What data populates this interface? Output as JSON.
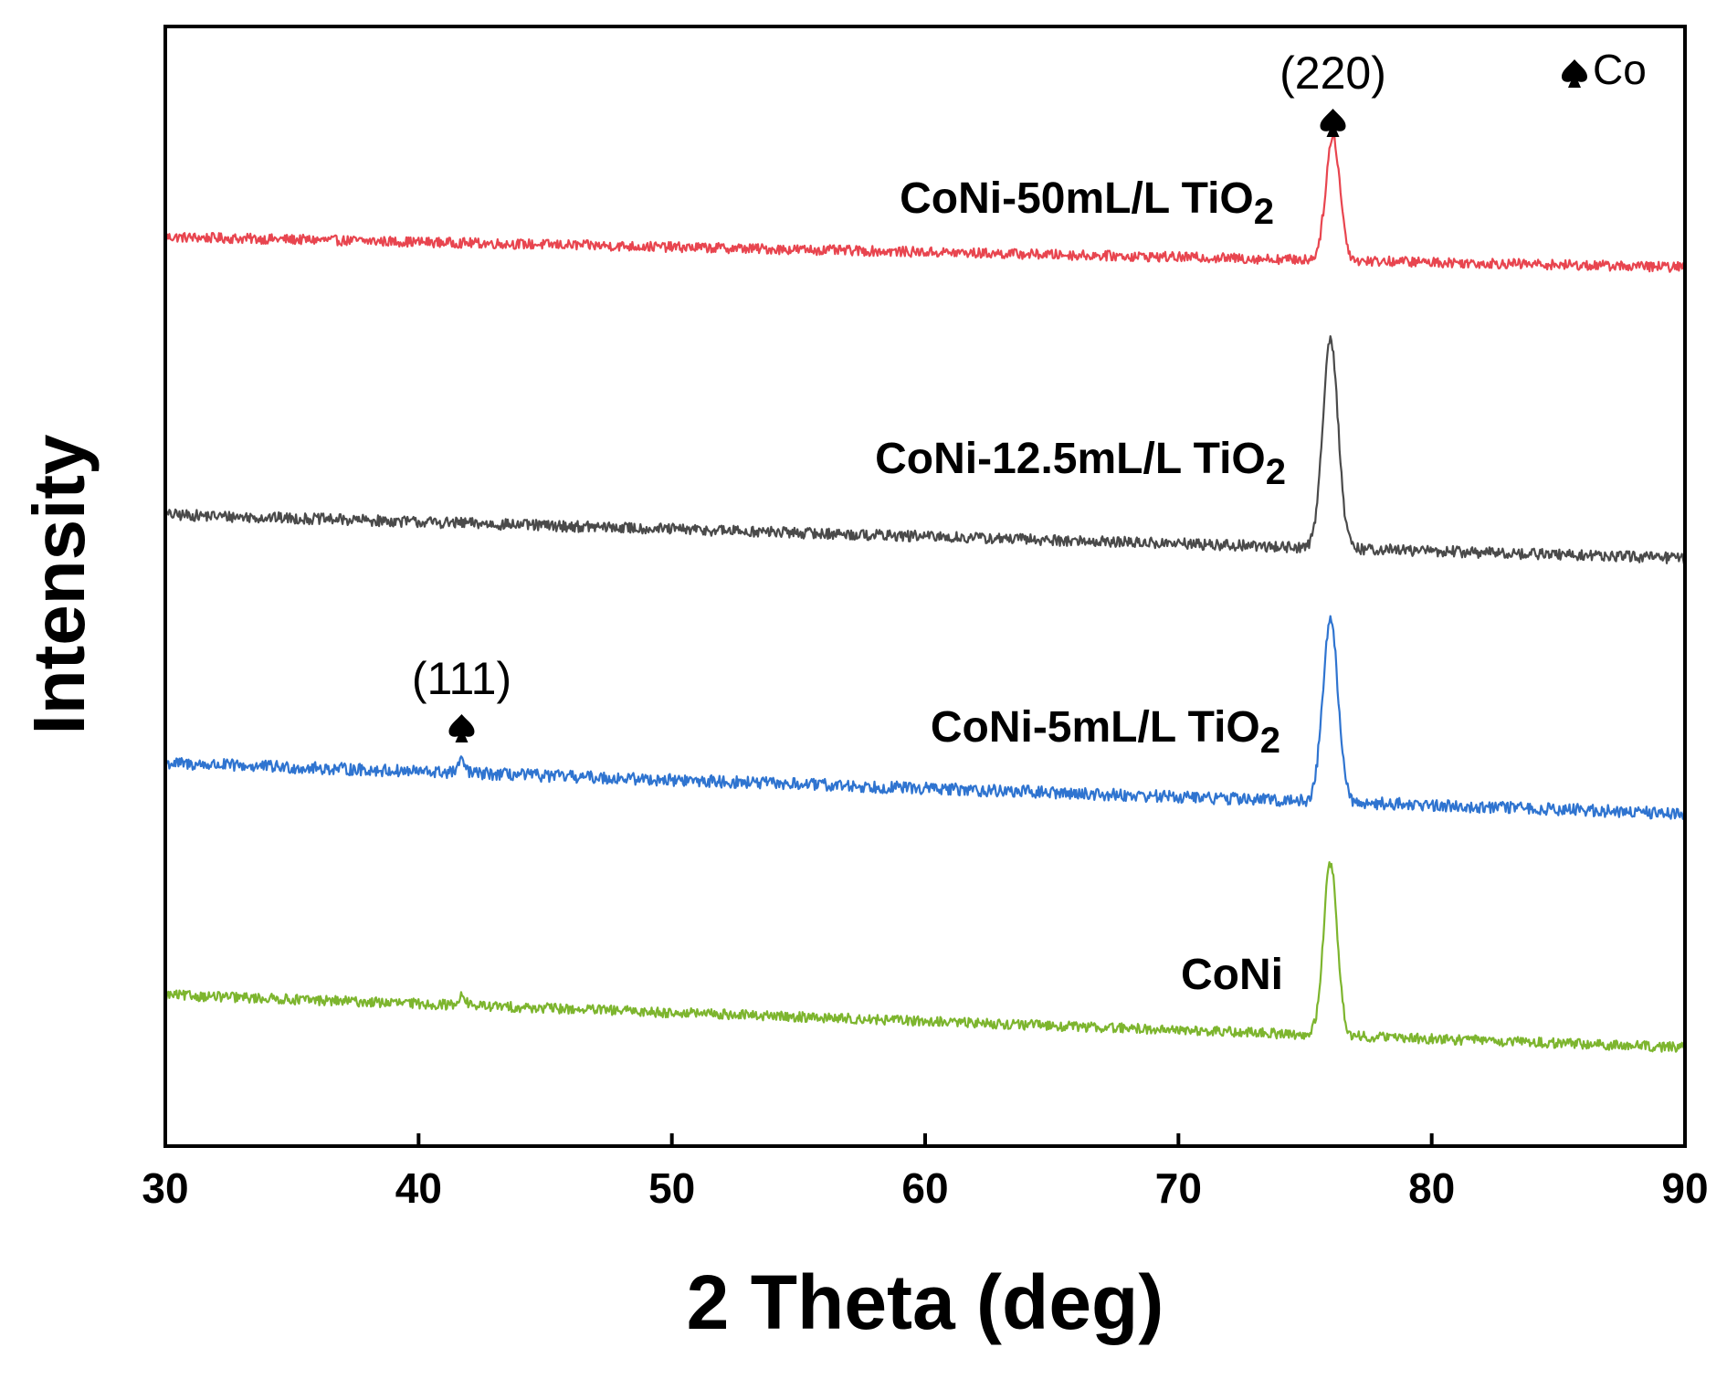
{
  "chart_data": {
    "type": "line",
    "title": "",
    "xlabel": "2 Theta (deg)",
    "ylabel": "Intensity",
    "xlim": [
      30,
      90
    ],
    "ylim": [
      0,
      100
    ],
    "xticks": [
      30,
      40,
      50,
      60,
      70,
      80,
      90
    ],
    "y_tick_labels": false,
    "legend": {
      "symbol": "spade",
      "text": "Co",
      "placement": "top-right"
    },
    "peak_annotations": [
      {
        "text": "(220)",
        "x": 76.1
      },
      {
        "text": "(111)",
        "x": 41.7
      }
    ],
    "series": [
      {
        "name": "CoNi-50mL/L TiO2",
        "label_main": "CoNi-50mL/L TiO",
        "label_sub": "2",
        "color": "#e8454f",
        "baseline_start": 81.2,
        "baseline_end": 78.5,
        "peaks": [
          {
            "x": 76.1,
            "height": 11.0,
            "width": 0.28
          }
        ],
        "noise": 0.45
      },
      {
        "name": "CoNi-12.5mL/L TiO2",
        "label_main": "CoNi-12.5mL/L TiO",
        "label_sub": "2",
        "color": "#4a4a4a",
        "baseline_start": 56.4,
        "baseline_end": 52.5,
        "peaks": [
          {
            "x": 76.0,
            "height": 18.8,
            "width": 0.3
          }
        ],
        "noise": 0.5
      },
      {
        "name": "CoNi-5mL/L TiO2",
        "label_main": "CoNi-5mL/L TiO",
        "label_sub": "2",
        "color": "#2f74d0",
        "baseline_start": 34.2,
        "baseline_end": 29.7,
        "peaks": [
          {
            "x": 76.0,
            "height": 16.2,
            "width": 0.3
          },
          {
            "x": 41.7,
            "height": 1.0,
            "width": 0.15
          }
        ],
        "noise": 0.55
      },
      {
        "name": "CoNi",
        "label_main": "CoNi",
        "label_sub": "",
        "color": "#7db52e",
        "baseline_start": 13.5,
        "baseline_end": 8.8,
        "peaks": [
          {
            "x": 76.0,
            "height": 15.4,
            "width": 0.27
          },
          {
            "x": 41.7,
            "height": 0.8,
            "width": 0.15
          }
        ],
        "noise": 0.45
      }
    ]
  }
}
